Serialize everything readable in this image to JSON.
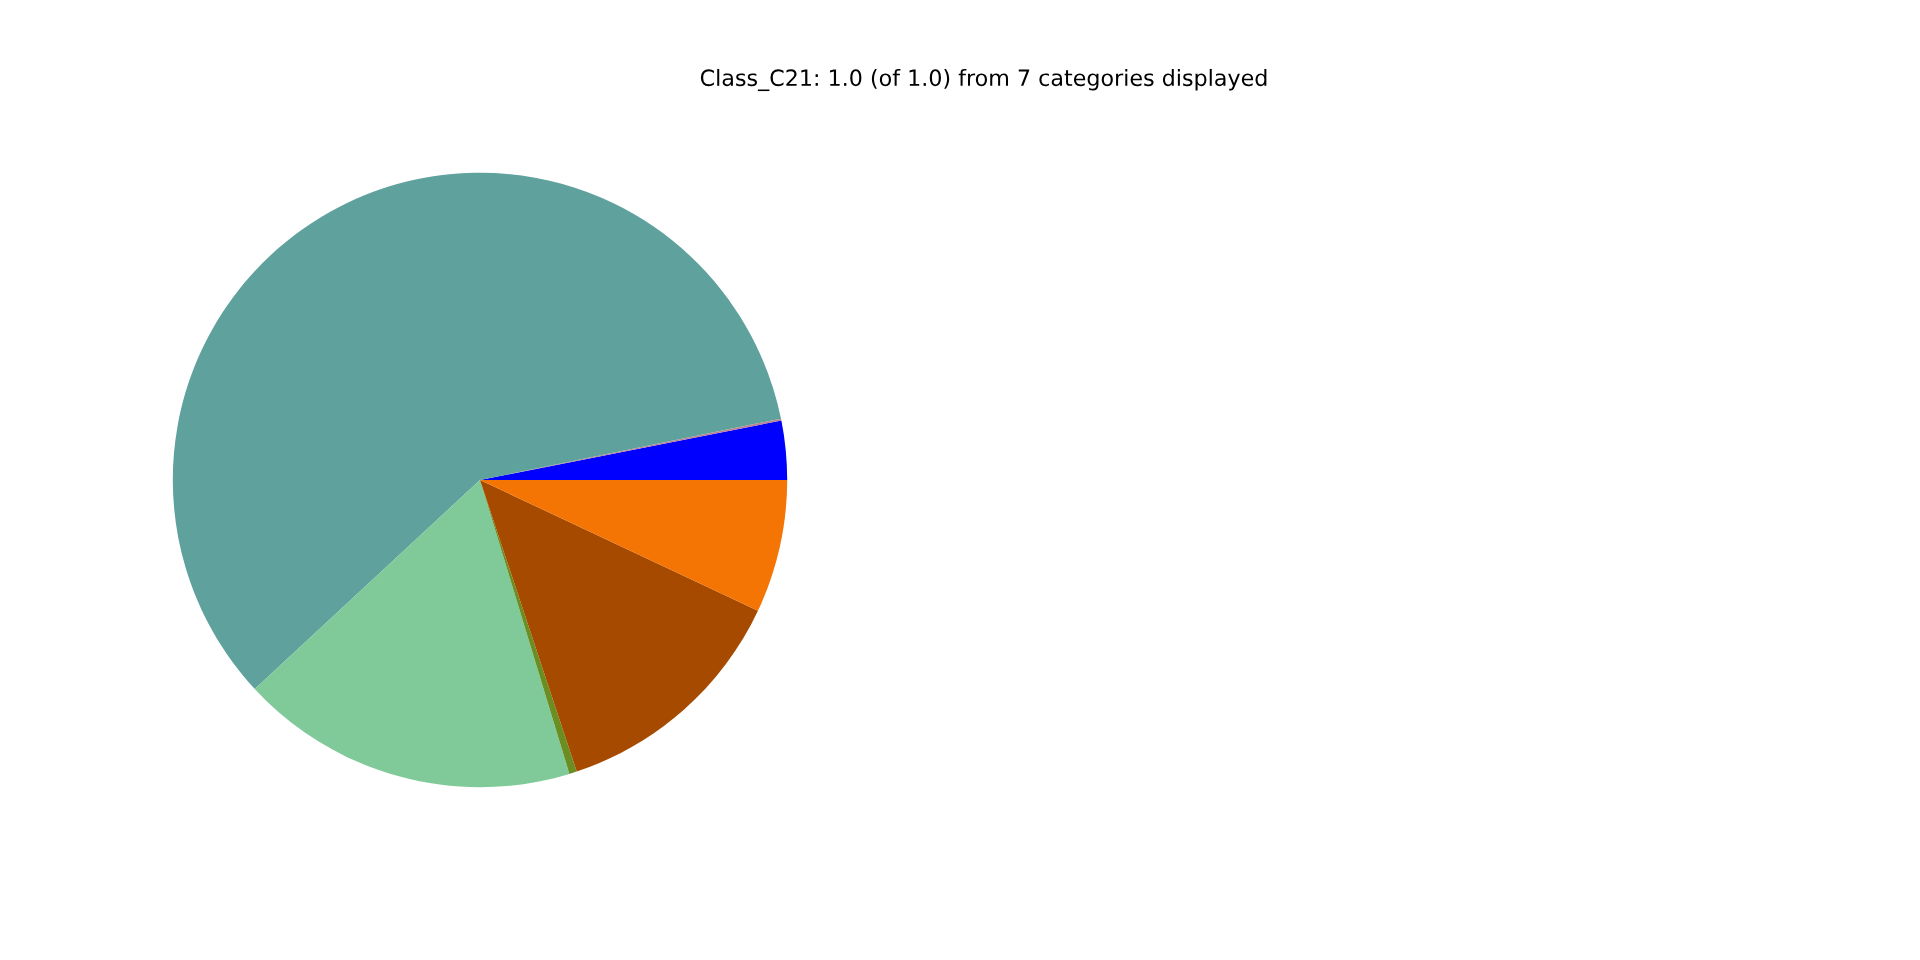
{
  "chart_data": {
    "type": "pie",
    "title": "Class_C21: 1.0 (of 1.0) from 7 categories displayed",
    "categories": [
      null,
      null,
      null,
      null,
      null,
      null,
      null
    ],
    "values": [
      3.1,
      0.1,
      58.7,
      17.8,
      0.4,
      12.9,
      7.0
    ],
    "colors": [
      "#0000ff",
      "#c08090",
      "#5fa19d",
      "#80ca9a",
      "#6b8e23",
      "#a64a00",
      "#f47404"
    ],
    "legend": false
  }
}
